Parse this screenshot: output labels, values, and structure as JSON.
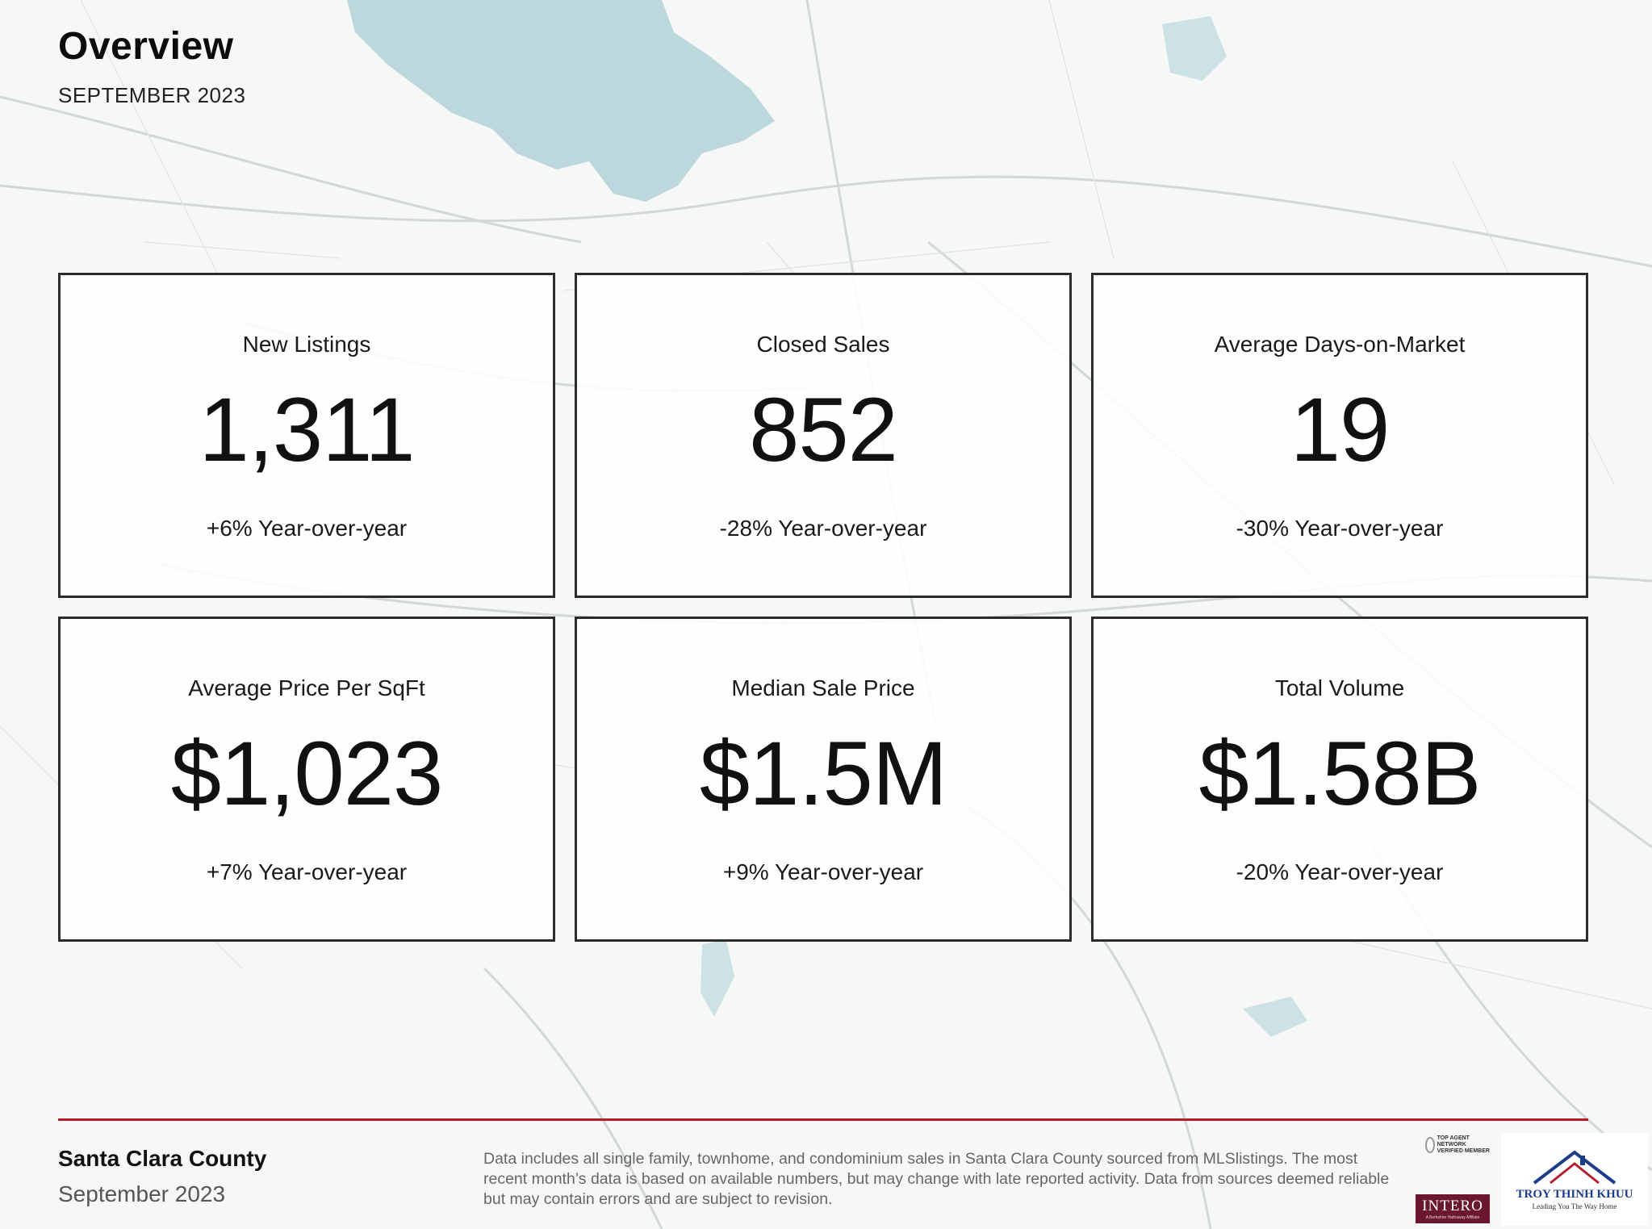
{
  "header": {
    "title": "Overview",
    "subtitle": "SEPTEMBER 2023"
  },
  "metrics": [
    {
      "label": "New Listings",
      "value": "1,311",
      "delta": "+6% Year-over-year"
    },
    {
      "label": "Closed Sales",
      "value": "852",
      "delta": "-28% Year-over-year"
    },
    {
      "label": "Average Days-on-Market",
      "value": "19",
      "delta": "-30% Year-over-year"
    },
    {
      "label": "Average Price Per SqFt",
      "value": "$1,023",
      "delta": "+7% Year-over-year"
    },
    {
      "label": "Median Sale Price",
      "value": "$1.5M",
      "delta": "+9% Year-over-year"
    },
    {
      "label": "Total Volume",
      "value": "$1.58B",
      "delta": "-20% Year-over-year"
    }
  ],
  "footer": {
    "county": "Santa Clara County",
    "month": "September 2023",
    "disclaimer": "Data includes all single family, townhome, and condominium sales in Santa Clara County sourced from MLSlistings. The most recent month’s data is based on available numbers, but may change with late reported activity. Data from sources deemed reliable but may contain errors and are subject to revision."
  },
  "logos": {
    "top_agent": "TOP AGENT NETWORK VERIFIED MEMBER",
    "intero_name": "INTERO",
    "intero_tagline": "A Berkshire Hathaway Affiliate",
    "troy_name": "TROY THINH KHUU",
    "troy_slogan": "Leading You The Way Home"
  },
  "colors": {
    "accent_rule": "#b01f2a",
    "card_border": "#2b2b2b",
    "map_water": "#bcd8dc",
    "intero": "#6b1730",
    "troy_blue": "#1d3d8a"
  }
}
